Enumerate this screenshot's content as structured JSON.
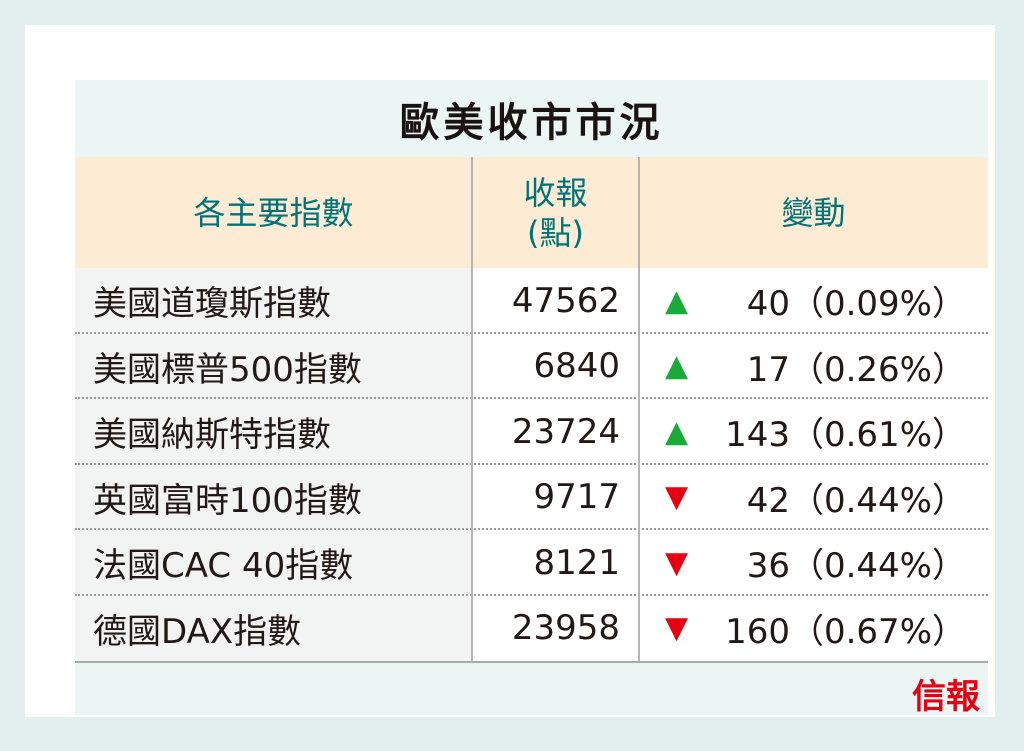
{
  "title": "歐美收市市況",
  "headers": {
    "index": "各主要指數",
    "close": "收報\n(點)",
    "close_line1": "收報",
    "close_line2": "(點)",
    "change": "變動"
  },
  "colors": {
    "up": "#1aaa3a",
    "down": "#e50012",
    "header_text": "#00737a",
    "header_bg": "#fdebd3"
  },
  "rows": [
    {
      "name": "美國道瓊斯指數",
      "close": "47562",
      "direction": "up",
      "arrow": "▲",
      "change": "40（0.09%）"
    },
    {
      "name": "美國標普500指數",
      "close": "6840",
      "direction": "up",
      "arrow": "▲",
      "change": "17（0.26%）"
    },
    {
      "name": "美國納斯特指數",
      "close": "23724",
      "direction": "up",
      "arrow": "▲",
      "change": "143（0.61%）"
    },
    {
      "name": "英國富時100指數",
      "close": "9717",
      "direction": "down",
      "arrow": "▼",
      "change": "42（0.44%）"
    },
    {
      "name": "法國CAC 40指數",
      "close": "8121",
      "direction": "down",
      "arrow": "▼",
      "change": "36（0.44%）"
    },
    {
      "name": "德國DAX指數",
      "close": "23958",
      "direction": "down",
      "arrow": "▼",
      "change": "160（0.67%）"
    }
  ],
  "logo": "信報"
}
